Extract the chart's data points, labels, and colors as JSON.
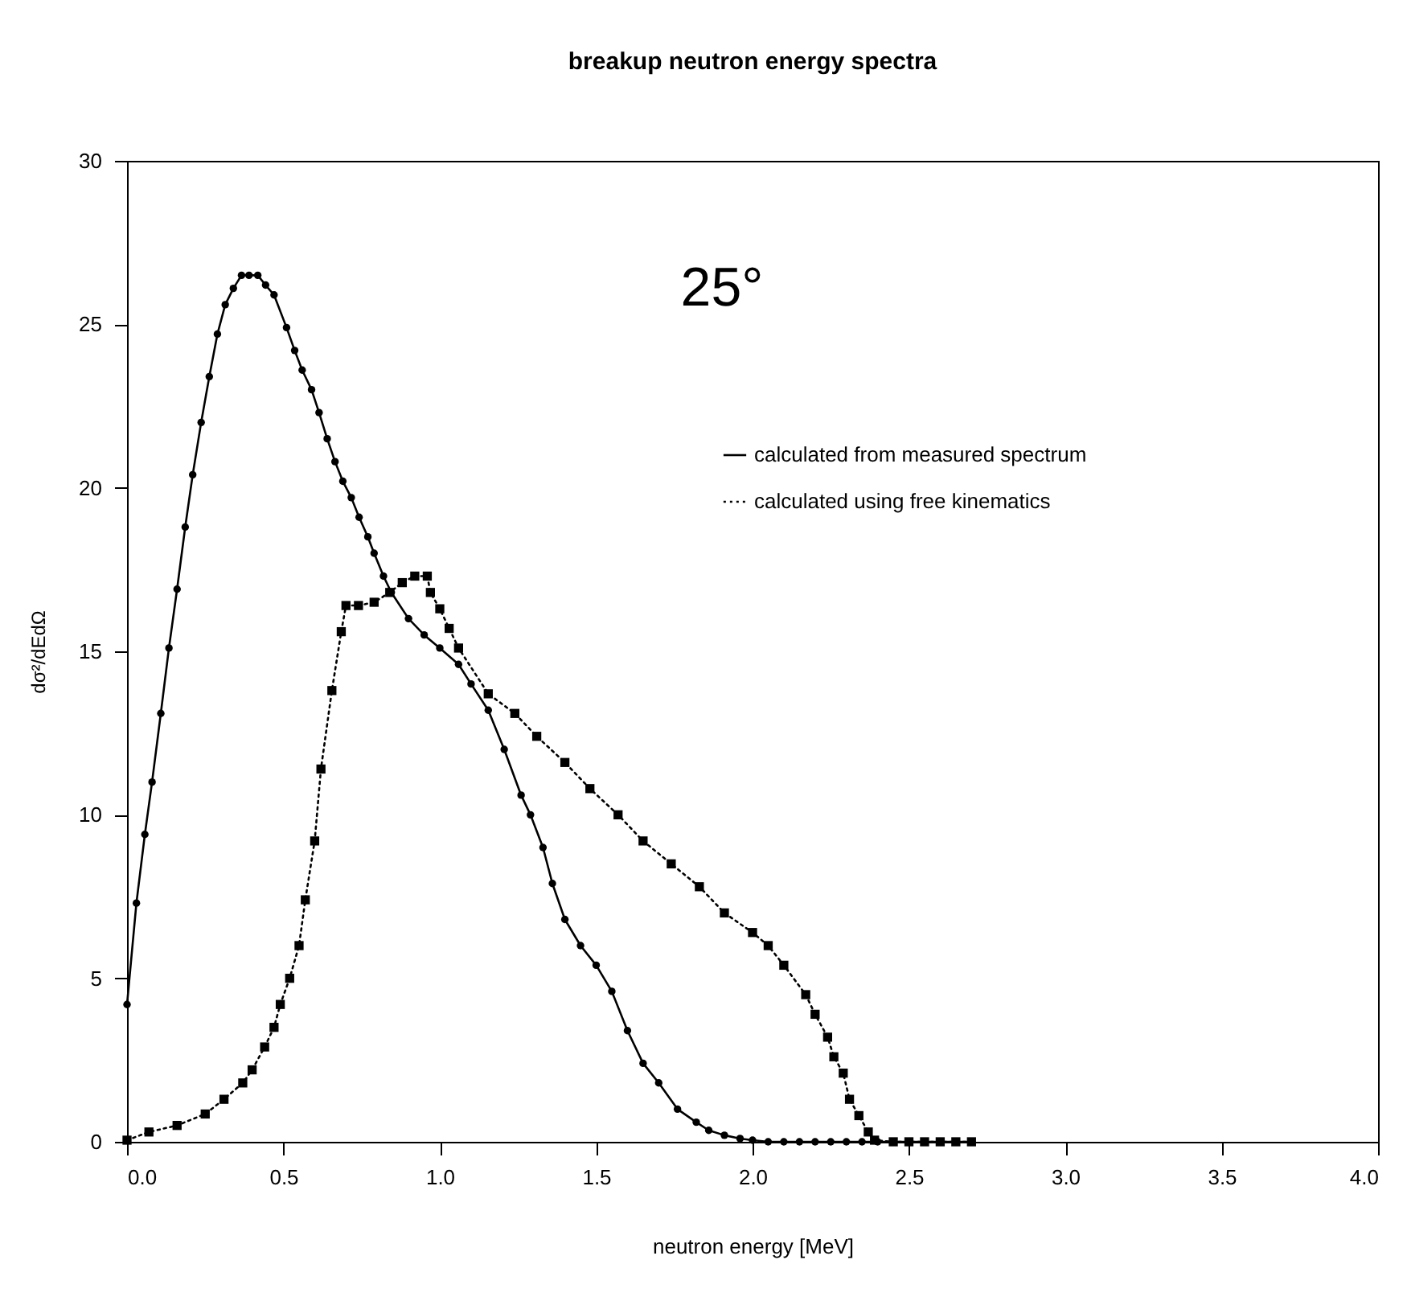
{
  "chart_data": {
    "type": "line",
    "title": "breakup neutron energy spectra",
    "xlabel": "neutron energy [MeV]",
    "ylabel": "dσ²/dEdΩ",
    "annotations": [
      "25°"
    ],
    "xlim": [
      0,
      4
    ],
    "ylim": [
      0,
      30
    ],
    "xticks": [
      {
        "value": 0,
        "label": "0.0"
      },
      {
        "value": 0.5,
        "label": "0.5"
      },
      {
        "value": 1,
        "label": "1.0"
      },
      {
        "value": 1.5,
        "label": "1.5"
      },
      {
        "value": 2,
        "label": "2.0"
      },
      {
        "value": 2.5,
        "label": "2.5"
      },
      {
        "value": 3,
        "label": "3.0"
      },
      {
        "value": 3.5,
        "label": "3.5"
      },
      {
        "value": 4,
        "label": "4.0"
      }
    ],
    "yticks": [
      0,
      5,
      10,
      15,
      20,
      25,
      30
    ],
    "grid": false,
    "legend": "top right",
    "series": [
      {
        "name": "calculated from measured spectrum",
        "color": "#000000",
        "marker": "circle",
        "line_style": "solid",
        "x": [
          0,
          0.03,
          0.057,
          0.08,
          0.108,
          0.134,
          0.16,
          0.186,
          0.21,
          0.237,
          0.263,
          0.289,
          0.314,
          0.34,
          0.366,
          0.39,
          0.418,
          0.443,
          0.47,
          0.51,
          0.536,
          0.56,
          0.59,
          0.614,
          0.64,
          0.665,
          0.69,
          0.717,
          0.742,
          0.77,
          0.79,
          0.82,
          0.845,
          0.9,
          0.95,
          1.0,
          1.06,
          1.1,
          1.155,
          1.206,
          1.26,
          1.29,
          1.33,
          1.36,
          1.4,
          1.45,
          1.5,
          1.55,
          1.6,
          1.65,
          1.7,
          1.76,
          1.82,
          1.86,
          1.91,
          1.96,
          2.0,
          2.05,
          2.1,
          2.15,
          2.2,
          2.25,
          2.3,
          2.35,
          2.4,
          2.45,
          2.5,
          2.55,
          2.6,
          2.65,
          2.7
        ],
        "values": [
          4.2,
          7.3,
          9.4,
          11.0,
          13.1,
          15.1,
          16.9,
          18.8,
          20.4,
          22.0,
          23.4,
          24.7,
          25.6,
          26.1,
          26.5,
          26.5,
          26.5,
          26.2,
          25.9,
          24.9,
          24.2,
          23.6,
          23.0,
          22.3,
          21.5,
          20.8,
          20.2,
          19.7,
          19.1,
          18.5,
          18.0,
          17.3,
          16.8,
          16.0,
          15.5,
          15.1,
          14.6,
          14.0,
          13.2,
          12.0,
          10.6,
          10.0,
          9.0,
          7.9,
          6.8,
          6.0,
          5.4,
          4.6,
          3.4,
          2.4,
          1.8,
          1.0,
          0.6,
          0.35,
          0.2,
          0.1,
          0.05,
          0,
          0,
          0,
          0,
          0,
          0,
          0,
          0,
          0,
          0,
          0,
          0,
          0,
          0
        ]
      },
      {
        "name": "calculated using free kinematics",
        "color": "#000000",
        "marker": "square",
        "line_style": "dotted",
        "x": [
          0,
          0.07,
          0.16,
          0.25,
          0.31,
          0.37,
          0.4,
          0.44,
          0.47,
          0.49,
          0.52,
          0.55,
          0.57,
          0.6,
          0.62,
          0.655,
          0.685,
          0.7,
          0.74,
          0.79,
          0.84,
          0.88,
          0.92,
          0.96,
          0.97,
          1.0,
          1.03,
          1.06,
          1.155,
          1.24,
          1.31,
          1.4,
          1.48,
          1.57,
          1.65,
          1.74,
          1.83,
          1.91,
          2.0,
          2.05,
          2.1,
          2.17,
          2.2,
          2.24,
          2.26,
          2.29,
          2.31,
          2.34,
          2.37,
          2.39,
          2.45,
          2.5,
          2.55,
          2.6,
          2.65,
          2.7
        ],
        "values": [
          0.05,
          0.3,
          0.5,
          0.85,
          1.3,
          1.8,
          2.2,
          2.9,
          3.5,
          4.2,
          5.0,
          6.0,
          7.4,
          9.2,
          11.4,
          13.8,
          15.6,
          16.4,
          16.4,
          16.5,
          16.8,
          17.1,
          17.3,
          17.3,
          16.8,
          16.3,
          15.7,
          15.1,
          13.7,
          13.1,
          12.4,
          11.6,
          10.8,
          10.0,
          9.2,
          8.5,
          7.8,
          7.0,
          6.4,
          6.0,
          5.4,
          4.5,
          3.9,
          3.2,
          2.6,
          2.1,
          1.3,
          0.8,
          0.3,
          0.05,
          0,
          0,
          0,
          0,
          0,
          0
        ]
      }
    ]
  }
}
